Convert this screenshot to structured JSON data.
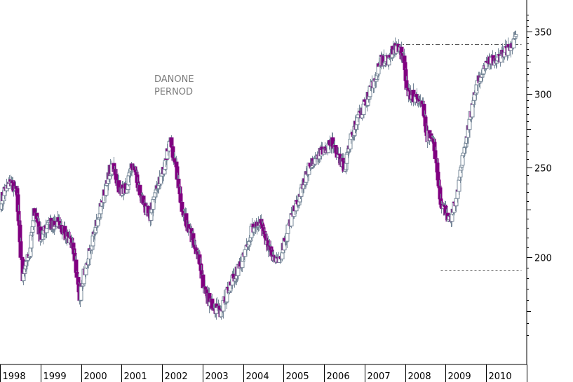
{
  "chart_data": {
    "type": "candlestick",
    "title": "",
    "annotation_lines": [
      "DANONE",
      "PERNOD"
    ],
    "xlabel": "",
    "ylabel": "",
    "ylim": [
      155,
      370
    ],
    "y_axis_position": "right",
    "y_ticks": [
      200,
      250,
      300,
      350
    ],
    "x_ticks": [
      "1998",
      "1999",
      "2000",
      "2001",
      "2002",
      "2003",
      "2004",
      "2005",
      "2006",
      "2007",
      "2008",
      "2009",
      "2010"
    ],
    "x_range": [
      1998.0,
      2011.0
    ],
    "grid": false,
    "colors": {
      "up": "#ffffff",
      "down": "#800080",
      "wick": "#778899",
      "axis": "#000000",
      "annotation": "#7d7d7d"
    },
    "reference_lines": [
      {
        "y": 339,
        "x_from": 2007.78,
        "x_to": 2010.87,
        "style": "dash-dot"
      },
      {
        "y": 194,
        "x_from": 2008.88,
        "x_to": 2010.87,
        "style": "dashed"
      }
    ],
    "anchors": [
      [
        1998.0,
        228
      ],
      [
        1998.1,
        236
      ],
      [
        1998.25,
        242
      ],
      [
        1998.4,
        236
      ],
      [
        1998.55,
        190
      ],
      [
        1998.7,
        200
      ],
      [
        1998.85,
        225
      ],
      [
        1999.0,
        210
      ],
      [
        1999.2,
        217
      ],
      [
        1999.4,
        218
      ],
      [
        1999.6,
        212
      ],
      [
        1999.8,
        205
      ],
      [
        1999.95,
        180
      ],
      [
        2000.1,
        195
      ],
      [
        2000.25,
        205
      ],
      [
        2000.4,
        220
      ],
      [
        2000.55,
        232
      ],
      [
        2000.7,
        248
      ],
      [
        2000.82,
        250
      ],
      [
        2000.95,
        235
      ],
      [
        2001.1,
        237
      ],
      [
        2001.25,
        250
      ],
      [
        2001.4,
        240
      ],
      [
        2001.55,
        226
      ],
      [
        2001.7,
        222
      ],
      [
        2001.85,
        236
      ],
      [
        2002.0,
        246
      ],
      [
        2002.15,
        262
      ],
      [
        2002.2,
        266
      ],
      [
        2002.35,
        245
      ],
      [
        2002.5,
        224
      ],
      [
        2002.7,
        212
      ],
      [
        2002.9,
        198
      ],
      [
        2003.05,
        183
      ],
      [
        2003.25,
        177
      ],
      [
        2003.45,
        175
      ],
      [
        2003.65,
        186
      ],
      [
        2003.85,
        193
      ],
      [
        2004.05,
        202
      ],
      [
        2004.2,
        214
      ],
      [
        2004.4,
        218
      ],
      [
        2004.55,
        210
      ],
      [
        2004.7,
        200
      ],
      [
        2004.85,
        197
      ],
      [
        2005.0,
        206
      ],
      [
        2005.2,
        221
      ],
      [
        2005.4,
        234
      ],
      [
        2005.6,
        249
      ],
      [
        2005.8,
        257
      ],
      [
        2006.0,
        261
      ],
      [
        2006.2,
        266
      ],
      [
        2006.35,
        256
      ],
      [
        2006.5,
        250
      ],
      [
        2006.65,
        268
      ],
      [
        2006.8,
        280
      ],
      [
        2007.0,
        292
      ],
      [
        2007.2,
        307
      ],
      [
        2007.4,
        326
      ],
      [
        2007.55,
        325
      ],
      [
        2007.7,
        334
      ],
      [
        2007.82,
        337
      ],
      [
        2007.95,
        326
      ],
      [
        2008.05,
        300
      ],
      [
        2008.25,
        298
      ],
      [
        2008.4,
        294
      ],
      [
        2008.55,
        270
      ],
      [
        2008.7,
        268
      ],
      [
        2008.85,
        232
      ],
      [
        2009.0,
        223
      ],
      [
        2009.1,
        218
      ],
      [
        2009.25,
        231
      ],
      [
        2009.45,
        262
      ],
      [
        2009.6,
        283
      ],
      [
        2009.8,
        311
      ],
      [
        2010.0,
        322
      ],
      [
        2010.1,
        325
      ],
      [
        2010.25,
        326
      ],
      [
        2010.4,
        330
      ],
      [
        2010.55,
        336
      ],
      [
        2010.73,
        345
      ]
    ]
  }
}
